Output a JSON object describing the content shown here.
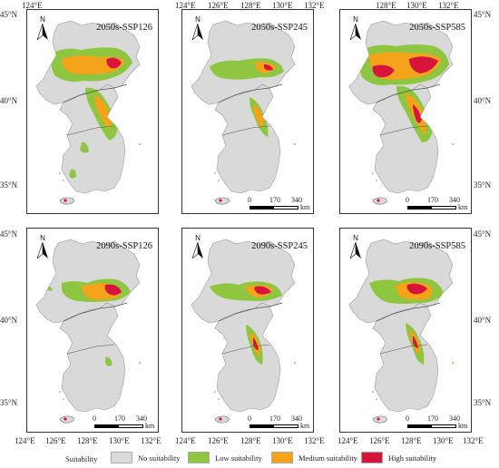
{
  "panels": [
    {
      "title": "2050s-SSP126",
      "scale": false
    },
    {
      "title": "2050s-SSP245",
      "scale": true
    },
    {
      "title": "2050s-SSP585",
      "scale": true
    },
    {
      "title": "2090s-SSP126",
      "scale": true
    },
    {
      "title": "2090s-SSP245",
      "scale": true
    },
    {
      "title": "2090s-SSP585",
      "scale": true
    }
  ],
  "north_label": "N",
  "scale": {
    "labels": [
      "0",
      "170",
      "340"
    ],
    "unit": "km"
  },
  "axes": {
    "lon_ticks": [
      "124°E",
      "126°E",
      "128°E",
      "130°E",
      "132°E"
    ],
    "lat_ticks": [
      "45°N",
      "40°N",
      "35°N"
    ]
  },
  "legend": {
    "title": "Suitability",
    "items": [
      {
        "label": "No suitability",
        "color": "#d9d9d9"
      },
      {
        "label": "Low suitability",
        "color": "#8fc641"
      },
      {
        "label": "Medium suitability",
        "color": "#f5a31a"
      },
      {
        "label": "High suitability",
        "color": "#d7143c"
      }
    ]
  },
  "colors": {
    "land": "#d9d9d9",
    "low": "#8fc641",
    "medium": "#f5a31a",
    "high": "#d7143c"
  }
}
